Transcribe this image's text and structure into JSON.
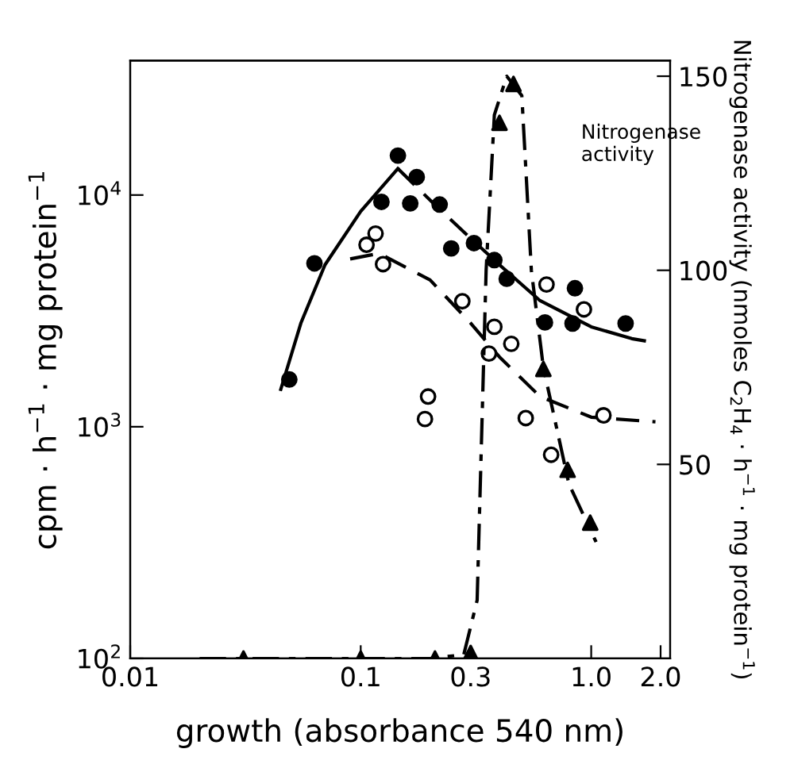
{
  "chart_data": {
    "type": "scatter",
    "xlabel": "growth (absorbance 540 nm)",
    "ylabel": "cpm · h$^{−1}$ · mg protein$^{−1}$",
    "y2label": "Nitrogenase activity (nmoles C$_{2}$H$_{4}$ · h$^{−1}$ · mg protein$^{−1}$)",
    "annotations": [
      "Nitrogenase\nactivity"
    ],
    "log": "xy",
    "xlim": [
      0.01,
      2.2
    ],
    "xticks": [
      0.01,
      0.1,
      0.3,
      {
        "value": 1.0,
        "label": "1.0"
      },
      {
        "value": 2.0,
        "label": "2.0"
      }
    ],
    "ylim": [
      100,
      38000
    ],
    "yticks": [
      {
        "value": 100,
        "label": "10$^{2}$"
      },
      {
        "value": 1000,
        "label": "10$^{3}$"
      },
      {
        "value": 10000,
        "label": "10$^{4}$"
      }
    ],
    "y2lim": [
      0,
      154
    ],
    "y2ticks": [
      50,
      100,
      150
    ],
    "grid": false,
    "legend": false,
    "series": [
      {
        "marker": "circle",
        "color": "#000000",
        "x": [
          0.049,
          0.063,
          0.123,
          0.145,
          0.164,
          0.175,
          0.22,
          0.247,
          0.31,
          0.38,
          0.43,
          0.63,
          0.83,
          0.85,
          1.41
        ],
        "values": [
          1600,
          5070,
          9340,
          14800,
          9200,
          11950,
          9100,
          5880,
          6200,
          5240,
          4350,
          2820,
          2790,
          3960,
          2790
        ]
      },
      {
        "marker": "circle",
        "color": "#ffffff",
        "x": [
          0.106,
          0.116,
          0.125,
          0.19,
          0.196,
          0.276,
          0.36,
          0.38,
          0.45,
          0.52,
          0.64,
          0.67,
          0.93,
          1.13
        ],
        "values": [
          6100,
          6820,
          5030,
          1080,
          1350,
          3480,
          2070,
          2700,
          2280,
          1090,
          4110,
          757,
          3210,
          1120
        ]
      },
      {
        "marker": "triangle",
        "axis": "y2",
        "color": "#000000",
        "x": [
          0.031,
          0.1,
          0.21,
          0.3,
          0.4,
          0.46,
          0.62,
          0.79,
          0.99
        ],
        "values": [
          0,
          0,
          0,
          1.4,
          138,
          148,
          74.6,
          48.6,
          35
        ]
      },
      {
        "type": "line",
        "line_style": "solid",
        "color": "#000000",
        "x": [
          0.045,
          0.055,
          0.07,
          0.1,
          0.145
        ],
        "values": [
          1450,
          2800,
          5000,
          8500,
          13000
        ]
      },
      {
        "type": "line",
        "line_style": "dashed",
        "color": "#000000",
        "x": [
          0.145,
          0.2,
          0.3,
          0.4
        ],
        "values": [
          13000,
          9500,
          6500,
          5000
        ]
      },
      {
        "type": "line",
        "line_style": "solid",
        "color": "#000000",
        "x": [
          0.4,
          0.6,
          1.0,
          1.5,
          1.7
        ],
        "values": [
          5000,
          3500,
          2700,
          2400,
          2350
        ]
      },
      {
        "type": "line",
        "line_style": "dashed",
        "color": "#000000",
        "x": [
          0.09,
          0.12,
          0.2,
          0.3,
          0.4,
          0.6,
          1.0,
          1.9
        ],
        "values": [
          5300,
          5600,
          4300,
          2800,
          2000,
          1350,
          1100,
          1050
        ]
      },
      {
        "type": "line",
        "line_style": "dashdot",
        "axis": "y2",
        "color": "#000000",
        "x": [
          0.02,
          0.1,
          0.2,
          0.28,
          0.32,
          0.35,
          0.38,
          0.43,
          0.5,
          0.55,
          0.62,
          0.8,
          1.05
        ],
        "values": [
          0,
          0,
          0,
          1,
          15,
          100,
          140,
          150,
          145,
          100,
          75,
          45,
          30
        ]
      }
    ]
  }
}
